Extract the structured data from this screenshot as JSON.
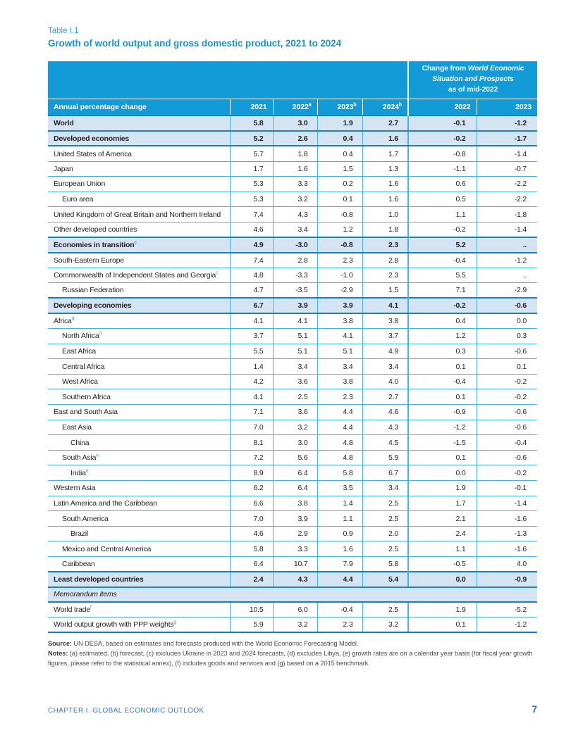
{
  "page": {
    "table_label": "Table I.1",
    "title": "Growth of world output and gross domestic product, 2021 to 2024"
  },
  "table": {
    "change_header": {
      "prefix": "Change from ",
      "publication": "World Economic Situation and Prospects",
      "suffix": "as of mid-2022"
    },
    "columns": {
      "label": "Annual percentage change",
      "years": [
        {
          "text": "2021",
          "sup": ""
        },
        {
          "text": "2022",
          "sup": "a"
        },
        {
          "text": "2023",
          "sup": "b"
        },
        {
          "text": "2024",
          "sup": "b"
        }
      ],
      "change_years": [
        "2022",
        "2023"
      ]
    },
    "rows": [
      {
        "label": "World",
        "sup": "",
        "indent": 0,
        "style": "section",
        "values": [
          "5.8",
          "3.0",
          "1.9",
          "2.7",
          "-0.1",
          "-1.2"
        ]
      },
      {
        "label": "Developed economies",
        "sup": "",
        "indent": 0,
        "style": "section",
        "values": [
          "5.2",
          "2.6",
          "0.4",
          "1.6",
          "-0.2",
          "-1.7"
        ]
      },
      {
        "label": "United States of America",
        "sup": "",
        "indent": 0,
        "style": "normal",
        "values": [
          "5.7",
          "1.8",
          "0.4",
          "1.7",
          "-0.8",
          "-1.4"
        ]
      },
      {
        "label": "Japan",
        "sup": "",
        "indent": 0,
        "style": "normal",
        "values": [
          "1.7",
          "1.6",
          "1.5",
          "1.3",
          "-1.1",
          "-0.7"
        ]
      },
      {
        "label": "European Union",
        "sup": "",
        "indent": 0,
        "style": "normal",
        "values": [
          "5.3",
          "3.3",
          "0.2",
          "1.6",
          "0.6",
          "-2.2"
        ]
      },
      {
        "label": "Euro area",
        "sup": "",
        "indent": 1,
        "style": "normal",
        "values": [
          "5.3",
          "3.2",
          "0.1",
          "1.6",
          "0.5",
          "-2.2"
        ]
      },
      {
        "label": "United Kingdom of Great Britain and Northern Ireland",
        "sup": "",
        "indent": 0,
        "style": "normal",
        "values": [
          "7.4",
          "4.3",
          "-0.8",
          "1.0",
          "1.1",
          "-1.8"
        ]
      },
      {
        "label": "Other developed countries",
        "sup": "",
        "indent": 0,
        "style": "normal",
        "values": [
          "4.6",
          "3.4",
          "1.2",
          "1.8",
          "-0.2",
          "-1.4"
        ]
      },
      {
        "label": "Economies in transition",
        "sup": "c",
        "indent": 0,
        "style": "section",
        "values": [
          "4.9",
          "-3.0",
          "-0.8",
          "2.3",
          "5.2",
          ".."
        ]
      },
      {
        "label": "South-Eastern Europe",
        "sup": "",
        "indent": 0,
        "style": "normal",
        "values": [
          "7.4",
          "2.8",
          "2.3",
          "2.8",
          "-0.4",
          "-1.2"
        ]
      },
      {
        "label": "Commonwealth of Independent States and Georgia",
        "sup": "c",
        "indent": 0,
        "style": "normal",
        "values": [
          "4.8",
          "-3.3",
          "-1.0",
          "2.3",
          "5.5",
          ".."
        ]
      },
      {
        "label": "Russian Federation",
        "sup": "",
        "indent": 1,
        "style": "normal",
        "values": [
          "4.7",
          "-3.5",
          "-2.9",
          "1.5",
          "7.1",
          "-2.9"
        ]
      },
      {
        "label": "Developing economies",
        "sup": "",
        "indent": 0,
        "style": "section",
        "values": [
          "6.7",
          "3.9",
          "3.9",
          "4.1",
          "-0.2",
          "-0.6"
        ]
      },
      {
        "label": "Africa",
        "sup": "d",
        "indent": 0,
        "style": "normal",
        "values": [
          "4.1",
          "4.1",
          "3.8",
          "3.8",
          "0.4",
          "0.0"
        ]
      },
      {
        "label": "North Africa",
        "sup": "d",
        "indent": 1,
        "style": "normal",
        "values": [
          "3.7",
          "5.1",
          "4.1",
          "3.7",
          "1.2",
          "0.3"
        ]
      },
      {
        "label": "East Africa",
        "sup": "",
        "indent": 1,
        "style": "normal",
        "values": [
          "5.5",
          "5.1",
          "5.1",
          "4.9",
          "0.3",
          "-0.6"
        ]
      },
      {
        "label": "Central Africa",
        "sup": "",
        "indent": 1,
        "style": "normal",
        "values": [
          "1.4",
          "3.4",
          "3.4",
          "3.4",
          "0.1",
          "0.1"
        ]
      },
      {
        "label": "West Africa",
        "sup": "",
        "indent": 1,
        "style": "normal",
        "values": [
          "4.2",
          "3.6",
          "3.8",
          "4.0",
          "-0.4",
          "-0.2"
        ]
      },
      {
        "label": "Southern Africa",
        "sup": "",
        "indent": 1,
        "style": "normal",
        "values": [
          "4.1",
          "2.5",
          "2.3",
          "2.7",
          "0.1",
          "-0.2"
        ]
      },
      {
        "label": "East and South Asia",
        "sup": "",
        "indent": 0,
        "style": "normal",
        "values": [
          "7.1",
          "3.6",
          "4.4",
          "4.6",
          "-0.9",
          "-0.6"
        ]
      },
      {
        "label": "East Asia",
        "sup": "",
        "indent": 1,
        "style": "normal",
        "values": [
          "7.0",
          "3.2",
          "4.4",
          "4.3",
          "-1.2",
          "-0.6"
        ]
      },
      {
        "label": "China",
        "sup": "",
        "indent": 2,
        "style": "normal",
        "values": [
          "8.1",
          "3.0",
          "4.8",
          "4.5",
          "-1.5",
          "-0.4"
        ]
      },
      {
        "label": "South Asia",
        "sup": "e",
        "indent": 1,
        "style": "normal",
        "values": [
          "7.2",
          "5.6",
          "4.8",
          "5.9",
          "0.1",
          "-0.6"
        ]
      },
      {
        "label": "India",
        "sup": "e",
        "indent": 2,
        "style": "normal",
        "values": [
          "8.9",
          "6.4",
          "5.8",
          "6.7",
          "0.0",
          "-0.2"
        ]
      },
      {
        "label": "Western Asia",
        "sup": "",
        "indent": 0,
        "style": "normal",
        "values": [
          "6.2",
          "6.4",
          "3.5",
          "3.4",
          "1.9",
          "-0.1"
        ]
      },
      {
        "label": "Latin America and the Caribbean",
        "sup": "",
        "indent": 0,
        "style": "normal",
        "values": [
          "6.6",
          "3.8",
          "1.4",
          "2.5",
          "1.7",
          "-1.4"
        ]
      },
      {
        "label": "South America",
        "sup": "",
        "indent": 1,
        "style": "normal",
        "values": [
          "7.0",
          "3.9",
          "1.1",
          "2.5",
          "2.1",
          "-1.6"
        ]
      },
      {
        "label": "Brazil",
        "sup": "",
        "indent": 2,
        "style": "normal",
        "values": [
          "4.6",
          "2.9",
          "0.9",
          "2.0",
          "2.4",
          "-1.3"
        ]
      },
      {
        "label": "Mexico and Central America",
        "sup": "",
        "indent": 1,
        "style": "normal",
        "values": [
          "5.8",
          "3.3",
          "1.6",
          "2.5",
          "1.1",
          "-1.6"
        ]
      },
      {
        "label": "Caribbean",
        "sup": "",
        "indent": 1,
        "style": "normal",
        "values": [
          "6.4",
          "10.7",
          "7.9",
          "5.8",
          "-0.5",
          "4.0"
        ]
      },
      {
        "label": "Least developed countries",
        "sup": "",
        "indent": 0,
        "style": "section",
        "values": [
          "2.4",
          "4.3",
          "4.4",
          "5.4",
          "0.0",
          "-0.9"
        ]
      },
      {
        "label": "Memorandum items",
        "sup": "",
        "indent": 0,
        "style": "memo",
        "values": []
      },
      {
        "label": "World trade",
        "sup": "f",
        "indent": 0,
        "style": "normal",
        "values": [
          "10.5",
          "6.0",
          "-0.4",
          "2.5",
          "1.9",
          "-5.2"
        ]
      },
      {
        "label": "World output growth with PPP weights",
        "sup": "g",
        "indent": 0,
        "style": "normal",
        "values": [
          "5.9",
          "3.2",
          "2.3",
          "3.2",
          "0.1",
          "-1.2"
        ]
      }
    ]
  },
  "notes": {
    "source_label": "Source:",
    "source_text": " UN DESA, based on estimates and forecasts produced with the World Economic Forecasting Model.",
    "notes_label": "Notes:",
    "notes_text": " (a) estimated, (b) forecast, (c) excludes Ukraine in 2023 and 2024 forecasts, (d) excludes Libya, (e) growth rates are on a calendar year basis (for fiscal year growth figures, please refer to the statistical annex), (f) includes goods and services and (g) based on a 2015 benchmark."
  },
  "footer": {
    "chapter": "CHAPTER I. GLOBAL ECONOMIC OUTLOOK",
    "page_number": "7"
  },
  "colors": {
    "header_blue": "#129bd7",
    "section_row_bg": "#d5e4f2",
    "row_border": "#45b3e3",
    "section_border": "#1a80c2",
    "accent_cyan": "#29abe2",
    "title_blue": "#1795d3",
    "footer_blue": "#2b7ec1",
    "page_number_blue": "#1b75bc",
    "note_text": "#4d4d4f"
  }
}
